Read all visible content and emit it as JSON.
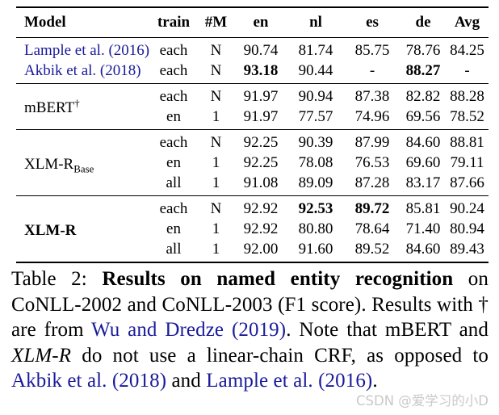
{
  "link_color": "#1a1a9c",
  "watermark": {
    "text": "CSDN @爱学习的小D",
    "color": "#c9c9c9"
  },
  "table": {
    "headers": [
      "Model",
      "train",
      "#M",
      "en",
      "nl",
      "es",
      "de",
      "Avg"
    ],
    "groups": [
      {
        "rows": [
          {
            "model": {
              "segments": [
                {
                  "text": "Lample et al. (2016)",
                  "link": true
                }
              ]
            },
            "cells": [
              "each",
              "N",
              "90.74",
              "81.74",
              "85.75",
              "78.76",
              "84.25"
            ],
            "bold": []
          },
          {
            "model": {
              "segments": [
                {
                  "text": "Akbik et al. (2018)",
                  "link": true
                }
              ]
            },
            "cells": [
              "each",
              "N",
              "93.18",
              "90.44",
              "-",
              "88.27",
              "-"
            ],
            "bold": [
              2,
              5
            ]
          }
        ]
      },
      {
        "model": {
          "segments": [
            {
              "text": "mBERT"
            },
            {
              "text": "†",
              "sup": true
            }
          ]
        },
        "rows": [
          {
            "cells": [
              "each",
              "N",
              "91.97",
              "90.94",
              "87.38",
              "82.82",
              "88.28"
            ],
            "bold": []
          },
          {
            "cells": [
              "en",
              "1",
              "91.97",
              "77.57",
              "74.96",
              "69.56",
              "78.52"
            ],
            "bold": []
          }
        ]
      },
      {
        "model": {
          "segments": [
            {
              "text": "XLM-R"
            },
            {
              "text": "Base",
              "sub": true
            }
          ]
        },
        "rows": [
          {
            "cells": [
              "each",
              "N",
              "92.25",
              "90.39",
              "87.99",
              "84.60",
              "88.81"
            ],
            "bold": []
          },
          {
            "cells": [
              "en",
              "1",
              "92.25",
              "78.08",
              "76.53",
              "69.60",
              "79.11"
            ],
            "bold": []
          },
          {
            "cells": [
              "all",
              "1",
              "91.08",
              "89.09",
              "87.28",
              "83.17",
              "87.66"
            ],
            "bold": []
          }
        ]
      },
      {
        "model": {
          "segments": [
            {
              "text": "XLM-R",
              "bold": true
            }
          ]
        },
        "rows": [
          {
            "cells": [
              "each",
              "N",
              "92.92",
              "92.53",
              "89.72",
              "85.81",
              "90.24"
            ],
            "bold": [
              3,
              4
            ]
          },
          {
            "cells": [
              "en",
              "1",
              "92.92",
              "80.80",
              "78.64",
              "71.40",
              "80.94"
            ],
            "bold": []
          },
          {
            "cells": [
              "all",
              "1",
              "92.00",
              "91.60",
              "89.52",
              "84.60",
              "89.43"
            ],
            "bold": []
          }
        ]
      }
    ]
  },
  "caption": {
    "segments": [
      {
        "text": "Table 2:  "
      },
      {
        "text": "Results on named entity recognition",
        "bold": true
      },
      {
        "text": " on CoNLL-2002 and CoNLL-2003 (F1 score).  Results with † are from "
      },
      {
        "text": "Wu and Dredze (2019)",
        "link": true
      },
      {
        "text": ".  Note that mBERT and "
      },
      {
        "text": "XLM-R",
        "italic": true
      },
      {
        "text": " do not use a linear-chain CRF, as opposed to "
      },
      {
        "text": "Akbik et al. (2018)",
        "link": true
      },
      {
        "text": " and "
      },
      {
        "text": "Lample et al. (2016)",
        "link": true
      },
      {
        "text": "."
      }
    ]
  }
}
